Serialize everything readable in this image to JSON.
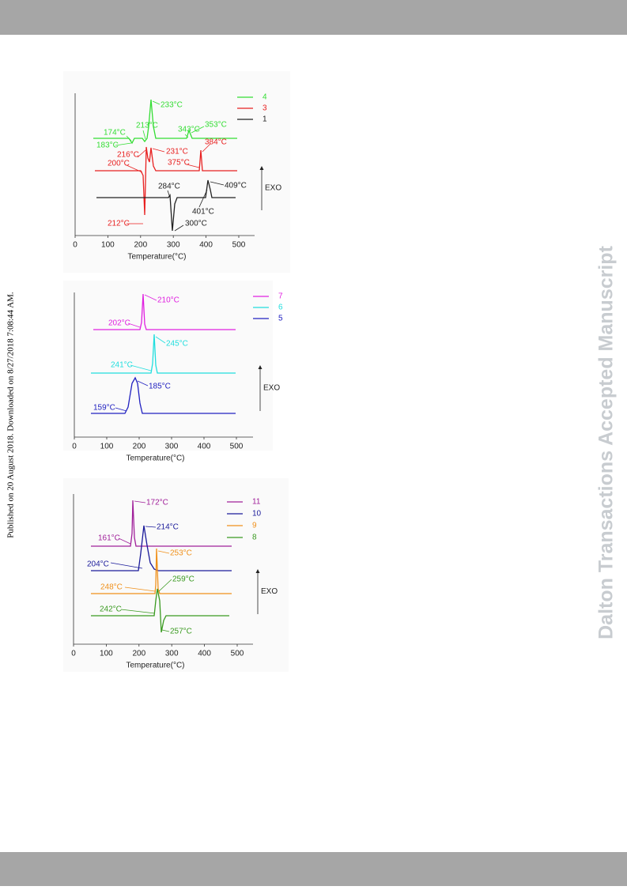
{
  "side_note": "Published on 20 August 2018. Downloaded on 8/27/2018 7:08:44 AM.",
  "watermark": "Dalton Transactions Accepted Manuscript",
  "figures": [
    {
      "x_ticks": [
        0,
        100,
        200,
        300,
        400,
        500
      ],
      "x_label": "Temperature(°C)",
      "exo": "EXO",
      "legend": [
        {
          "name": "4",
          "color": "#33dd33"
        },
        {
          "name": "3",
          "color": "#e82020"
        },
        {
          "name": "1",
          "color": "#222222"
        }
      ],
      "annotations": [
        "233°C",
        "213°C",
        "343°C",
        "353°C",
        "174°C",
        "183°C",
        "216°C",
        "231°C",
        "384°C",
        "200°C",
        "375°C",
        "284°C",
        "409°C",
        "401°C",
        "212°C",
        "300°C"
      ]
    },
    {
      "x_ticks": [
        0,
        100,
        200,
        300,
        400,
        500
      ],
      "x_label": "Temperature(°C)",
      "exo": "EXO",
      "legend": [
        {
          "name": "7",
          "color": "#e020e0"
        },
        {
          "name": "6",
          "color": "#20dede"
        },
        {
          "name": "5",
          "color": "#2020c0"
        }
      ],
      "annotations": [
        "210°C",
        "202°C",
        "245°C",
        "241°C",
        "185°C",
        "159°C"
      ]
    },
    {
      "x_ticks": [
        0,
        100,
        200,
        300,
        400,
        500
      ],
      "x_label": "Temperature(°C)",
      "exo": "EXO",
      "legend": [
        {
          "name": "11",
          "color": "#a0209a"
        },
        {
          "name": "10",
          "color": "#1a1a9a"
        },
        {
          "name": "9",
          "color": "#f0901a"
        },
        {
          "name": "8",
          "color": "#3a9a20"
        }
      ],
      "annotations": [
        "172°C",
        "161°C",
        "214°C",
        "204°C",
        "253°C",
        "248°C",
        "259°C",
        "242°C",
        "257°C"
      ]
    }
  ]
}
